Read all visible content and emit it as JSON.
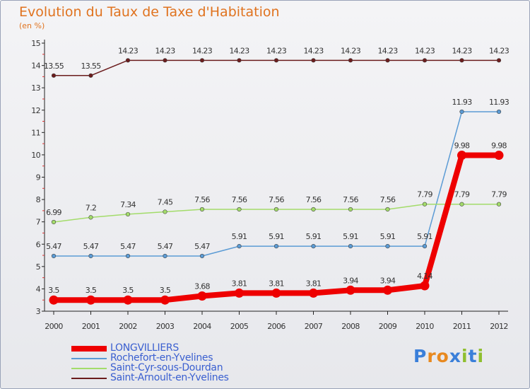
{
  "title": "Evolution du Taux de Taxe d'Habitation",
  "subtitle": "(en %)",
  "brand": {
    "text": "Proxiti",
    "letter_colors": [
      "#3a7fd9",
      "#e8891f",
      "#e8891f",
      "#3a7fd9",
      "#8fbf2f",
      "#3a7fd9",
      "#8fbf2f"
    ]
  },
  "chart_data": {
    "type": "line",
    "title": "Evolution du Taux de Taxe d'Habitation",
    "ylabel": "(en %)",
    "xlabel": "",
    "x": [
      "2000",
      "2001",
      "2002",
      "2003",
      "2004",
      "2005",
      "2006",
      "2007",
      "2008",
      "2009",
      "2010",
      "2011",
      "2012"
    ],
    "ylim": [
      3,
      15
    ],
    "yticks": [
      "3",
      "4",
      "5",
      "6",
      "7",
      "8",
      "9",
      "10",
      "11",
      "12",
      "13",
      "14",
      "15"
    ],
    "grid": false,
    "legend_position": "bottom-left",
    "series": [
      {
        "name": "Saint-Arnoult-en-Yvelines",
        "color": "#6b1c1c",
        "width": 1.5,
        "marker": 2.8,
        "values": [
          13.55,
          13.55,
          14.23,
          14.23,
          14.23,
          14.23,
          14.23,
          14.23,
          14.23,
          14.23,
          14.23,
          14.23,
          14.23
        ],
        "labels": [
          "13.55",
          "13.55",
          "14.23",
          "14.23",
          "14.23",
          "14.23",
          "14.23",
          "14.23",
          "14.23",
          "14.23",
          "14.23",
          "14.23",
          "14.23"
        ]
      },
      {
        "name": "Rochefort-en-Yvelines",
        "color": "#5b9bd5",
        "width": 1.5,
        "marker": 2.8,
        "values": [
          5.47,
          5.47,
          5.47,
          5.47,
          5.47,
          5.91,
          5.91,
          5.91,
          5.91,
          5.91,
          5.91,
          11.93,
          11.93
        ],
        "labels": [
          "5.47",
          "5.47",
          "5.47",
          "5.47",
          "5.47",
          "5.91",
          "5.91",
          "5.91",
          "5.91",
          "5.91",
          "5.91",
          "11.93",
          "11.93"
        ]
      },
      {
        "name": "Saint-Cyr-sous-Dourdan",
        "color": "#a3dc6a",
        "width": 1.5,
        "marker": 2.8,
        "values": [
          6.99,
          7.2,
          7.34,
          7.45,
          7.56,
          7.56,
          7.56,
          7.56,
          7.56,
          7.56,
          7.79,
          7.79,
          7.79
        ],
        "labels": [
          "6.99",
          "7.2",
          "7.34",
          "7.45",
          "7.56",
          "7.56",
          "7.56",
          "7.56",
          "7.56",
          "7.56",
          "7.79",
          "7.79",
          "7.79"
        ]
      },
      {
        "name": "LONGVILLIERS",
        "color": "#ee0000",
        "width": 8,
        "marker": 6.5,
        "values": [
          3.5,
          3.5,
          3.5,
          3.5,
          3.68,
          3.81,
          3.81,
          3.81,
          3.94,
          3.94,
          4.14,
          9.98,
          9.98
        ],
        "labels": [
          "3.5",
          "3.5",
          "3.5",
          "3.5",
          "3.68",
          "3.81",
          "3.81",
          "3.81",
          "3.94",
          "3.94",
          "4.14",
          "9.98",
          "9.98"
        ]
      }
    ],
    "legend": [
      "LONGVILLIERS",
      "Rochefort-en-Yvelines",
      "Saint-Cyr-sous-Dourdan",
      "Saint-Arnoult-en-Yvelines"
    ]
  }
}
